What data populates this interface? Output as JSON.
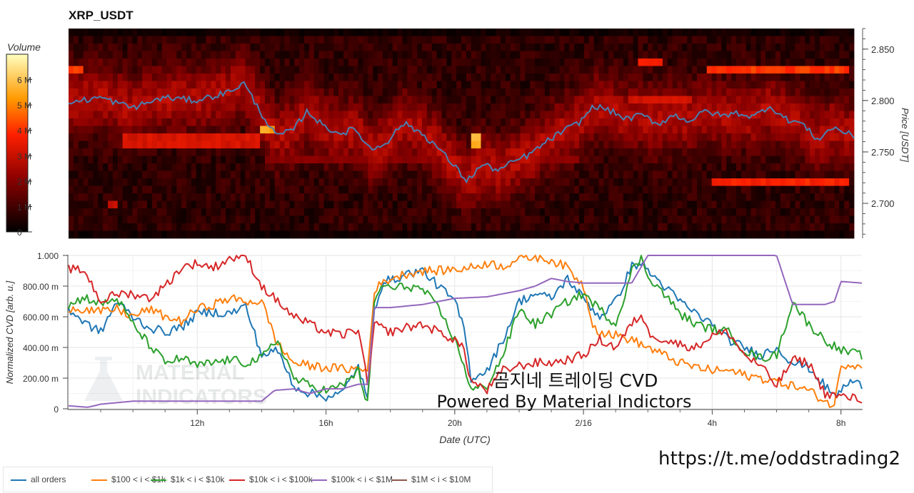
{
  "title": "XRP_USDT",
  "colorbar": {
    "title": "Volume",
    "ticks": [
      "6 M",
      "5 M",
      "4 M",
      "3 M",
      "2 M",
      "1 M",
      "0"
    ],
    "max": 7
  },
  "heatmap": {
    "ylabel": "Price [USDT]",
    "price_range": [
      2.666,
      2.87
    ],
    "price_ticks": [
      "2.850",
      "2.800",
      "2.750",
      "2.700"
    ],
    "price_tick_values": [
      2.85,
      2.8,
      2.75,
      2.7
    ],
    "levels": 28,
    "columns": 160
  },
  "cvd": {
    "ylabel": "Normalized CVD [arb. u.]",
    "y_ticks": [
      "1.000",
      "800.00 m",
      "600.00 m",
      "400.00 m",
      "200.00 m",
      "0"
    ],
    "y_tick_values": [
      1,
      0.8,
      0.6,
      0.4,
      0.2,
      0
    ],
    "xlabel": "Date (UTC)",
    "x_ticks": [
      "12h",
      "16h",
      "20h",
      "2/16",
      "4h",
      "8h"
    ],
    "x_tick_hours": [
      12,
      16,
      20,
      24,
      28,
      32
    ],
    "hour_range": [
      8.0,
      32.65
    ]
  },
  "watermark": {
    "line1": "MATERIAL",
    "line2": "INDICATORS"
  },
  "overlay": {
    "line1": "곰지네 트레이딩 CVD",
    "line2": "Powered By Material Indictors"
  },
  "url": "https://t.me/oddstrading2",
  "chart_data": [
    {
      "type": "heatmap",
      "title": "XRP_USDT",
      "ylabel": "Price [USDT]",
      "colorbar_label": "Volume",
      "price_line": {
        "name": "price",
        "color": "#4a7fb0",
        "hours": [
          8.0,
          9.0,
          10.0,
          11.0,
          12.0,
          13.0,
          13.5,
          14.0,
          14.5,
          15.0,
          15.5,
          16.0,
          16.5,
          17.0,
          17.5,
          18.0,
          18.5,
          19.0,
          19.5,
          20.0,
          20.5,
          21.0,
          21.5,
          22.0,
          22.5,
          23.0,
          23.5,
          24.0,
          24.5,
          25.0,
          25.5,
          26.0,
          26.5,
          27.0,
          27.5,
          28.0,
          28.5,
          29.0,
          29.5,
          30.0,
          30.5,
          31.0,
          31.5,
          32.0,
          32.65
        ],
        "prices": [
          2.798,
          2.803,
          2.793,
          2.803,
          2.8,
          2.808,
          2.817,
          2.79,
          2.766,
          2.77,
          2.79,
          2.775,
          2.768,
          2.772,
          2.752,
          2.76,
          2.778,
          2.77,
          2.757,
          2.74,
          2.722,
          2.738,
          2.732,
          2.741,
          2.748,
          2.76,
          2.77,
          2.778,
          2.795,
          2.79,
          2.782,
          2.786,
          2.777,
          2.786,
          2.78,
          2.79,
          2.785,
          2.788,
          2.784,
          2.795,
          2.782,
          2.778,
          2.762,
          2.774,
          2.765
        ]
      },
      "bands": [
        {
          "price": 2.83,
          "from_hour": 28.0,
          "to_hour": 32.5,
          "volume": 4.2
        },
        {
          "price": 2.84,
          "from_hour": 25.8,
          "to_hour": 26.7,
          "volume": 3.8
        },
        {
          "price": 2.83,
          "from_hour": 8.0,
          "to_hour": 8.5,
          "volume": 4.4
        },
        {
          "price": 2.77,
          "from_hour": 14.0,
          "to_hour": 14.5,
          "volume": 5.6
        },
        {
          "price": 2.76,
          "from_hour": 9.7,
          "to_hour": 14.0,
          "volume": 3.3
        },
        {
          "price": 2.76,
          "from_hour": 20.7,
          "to_hour": 20.9,
          "volume": 5.7
        },
        {
          "price": 2.74,
          "from_hour": 14.2,
          "to_hour": 24.0,
          "volume": 2.1
        },
        {
          "price": 2.72,
          "from_hour": 28.2,
          "to_hour": 32.5,
          "volume": 3.9
        },
        {
          "price": 2.7,
          "from_hour": 9.3,
          "to_hour": 9.6,
          "volume": 3.0
        },
        {
          "price": 2.8,
          "from_hour": 25.5,
          "to_hour": 27.5,
          "volume": 3.2
        }
      ]
    },
    {
      "type": "line",
      "xlabel": "Date (UTC)",
      "ylabel": "Normalized CVD [arb. u.]",
      "ylim": [
        0,
        1
      ],
      "xlim_hours": [
        8.0,
        32.65
      ],
      "series": [
        {
          "name": "all orders",
          "color": "#1f77b4",
          "x": [
            8.0,
            8.5,
            9.0,
            9.5,
            10.0,
            10.5,
            11.0,
            11.5,
            12.0,
            12.5,
            13.0,
            13.5,
            14.0,
            14.5,
            15.0,
            15.5,
            16.0,
            16.5,
            17.0,
            17.3,
            17.5,
            17.8,
            18.0,
            18.5,
            19.0,
            19.5,
            20.0,
            20.3,
            20.5,
            21.0,
            21.5,
            22.0,
            22.5,
            23.0,
            23.5,
            24.0,
            24.5,
            25.0,
            25.5,
            25.8,
            26.0,
            26.5,
            27.0,
            27.5,
            28.0,
            28.5,
            29.0,
            29.5,
            30.0,
            30.5,
            31.0,
            31.5,
            31.8,
            32.0,
            32.3,
            32.65
          ],
          "y": [
            0.65,
            0.56,
            0.5,
            0.7,
            0.6,
            0.53,
            0.5,
            0.53,
            0.62,
            0.63,
            0.62,
            0.67,
            0.35,
            0.38,
            0.15,
            0.1,
            0.08,
            0.1,
            0.28,
            0.05,
            0.65,
            0.85,
            0.83,
            0.88,
            0.9,
            0.8,
            0.7,
            0.52,
            0.2,
            0.25,
            0.45,
            0.7,
            0.75,
            0.72,
            0.85,
            0.72,
            0.6,
            0.7,
            0.93,
            0.95,
            0.9,
            0.8,
            0.7,
            0.62,
            0.55,
            0.45,
            0.4,
            0.35,
            0.4,
            0.3,
            0.27,
            0.15,
            0.08,
            0.12,
            0.18,
            0.15
          ]
        },
        {
          "name": "$100 < i < $1k",
          "color": "#ff7f0e",
          "x": [
            8.0,
            8.5,
            9.0,
            9.5,
            10.0,
            10.5,
            11.0,
            11.5,
            12.0,
            12.5,
            13.0,
            13.5,
            14.0,
            14.5,
            15.0,
            15.5,
            16.0,
            16.5,
            17.0,
            17.3,
            17.5,
            18.0,
            18.5,
            19.0,
            19.5,
            20.0,
            20.5,
            21.0,
            21.5,
            22.0,
            22.5,
            23.0,
            23.5,
            24.0,
            24.3,
            24.5,
            25.0,
            25.5,
            26.0,
            26.5,
            27.0,
            27.5,
            28.0,
            28.5,
            29.0,
            29.5,
            30.0,
            30.5,
            31.0,
            31.5,
            31.8,
            32.0,
            32.65
          ],
          "y": [
            0.66,
            0.65,
            0.63,
            0.65,
            0.6,
            0.65,
            0.6,
            0.57,
            0.65,
            0.68,
            0.72,
            0.7,
            0.7,
            0.42,
            0.3,
            0.28,
            0.27,
            0.26,
            0.26,
            0.25,
            0.78,
            0.85,
            0.88,
            0.9,
            0.9,
            0.91,
            0.92,
            0.95,
            0.93,
            0.98,
            0.99,
            0.97,
            0.92,
            0.8,
            0.55,
            0.5,
            0.48,
            0.45,
            0.4,
            0.35,
            0.3,
            0.27,
            0.25,
            0.25,
            0.22,
            0.2,
            0.18,
            0.15,
            0.12,
            0.05,
            0.02,
            0.29,
            0.29
          ]
        },
        {
          "name": "$1k < i < $10k",
          "color": "#2ca02c",
          "x": [
            8.0,
            8.5,
            9.0,
            9.5,
            10.0,
            10.5,
            11.0,
            11.5,
            12.0,
            12.5,
            13.0,
            13.5,
            14.0,
            14.5,
            15.0,
            15.5,
            16.0,
            16.5,
            17.0,
            17.3,
            17.5,
            17.8,
            18.0,
            18.5,
            19.0,
            19.5,
            20.0,
            20.3,
            20.5,
            21.0,
            21.5,
            22.0,
            22.5,
            23.0,
            23.5,
            24.0,
            24.5,
            25.0,
            25.5,
            25.8,
            26.0,
            26.5,
            27.0,
            27.5,
            28.0,
            28.5,
            29.0,
            29.5,
            30.0,
            30.5,
            31.0,
            31.5,
            32.0,
            32.65
          ],
          "y": [
            0.67,
            0.73,
            0.68,
            0.72,
            0.55,
            0.42,
            0.3,
            0.33,
            0.28,
            0.3,
            0.32,
            0.3,
            0.33,
            0.45,
            0.2,
            0.15,
            0.12,
            0.15,
            0.25,
            0.02,
            0.7,
            0.82,
            0.78,
            0.8,
            0.78,
            0.65,
            0.45,
            0.28,
            0.12,
            0.15,
            0.35,
            0.65,
            0.55,
            0.62,
            0.7,
            0.75,
            0.65,
            0.55,
            0.9,
            0.98,
            0.87,
            0.75,
            0.62,
            0.55,
            0.52,
            0.5,
            0.38,
            0.33,
            0.35,
            0.7,
            0.55,
            0.45,
            0.38,
            0.35
          ]
        },
        {
          "name": "$10k < i < $100k",
          "color": "#d62728",
          "x": [
            8.0,
            8.5,
            9.0,
            9.5,
            10.0,
            10.5,
            11.0,
            11.5,
            12.0,
            12.5,
            13.0,
            13.5,
            14.0,
            14.5,
            15.0,
            15.5,
            16.0,
            16.5,
            17.0,
            17.3,
            17.5,
            18.0,
            18.5,
            19.0,
            19.5,
            20.0,
            20.3,
            20.5,
            21.0,
            21.5,
            22.0,
            22.5,
            23.0,
            23.5,
            24.0,
            24.5,
            25.0,
            25.5,
            25.8,
            26.0,
            26.5,
            27.0,
            27.5,
            28.0,
            28.5,
            29.0,
            29.5,
            30.0,
            30.5,
            31.0,
            31.5,
            32.0,
            32.65
          ],
          "y": [
            0.91,
            0.9,
            0.7,
            0.75,
            0.75,
            0.72,
            0.8,
            0.92,
            0.95,
            0.92,
            0.98,
            1.0,
            0.8,
            0.7,
            0.6,
            0.55,
            0.5,
            0.48,
            0.52,
            0.15,
            0.55,
            0.5,
            0.53,
            0.55,
            0.5,
            0.45,
            0.38,
            0.18,
            0.12,
            0.25,
            0.28,
            0.3,
            0.3,
            0.32,
            0.35,
            0.45,
            0.4,
            0.55,
            0.62,
            0.5,
            0.45,
            0.42,
            0.4,
            0.48,
            0.5,
            0.35,
            0.28,
            0.15,
            0.32,
            0.3,
            0.1,
            0.08,
            0.06
          ]
        },
        {
          "name": "$100k < i < $1M",
          "color": "#9467bd",
          "x": [
            8.0,
            8.6,
            9.0,
            10.0,
            11.0,
            12.0,
            13.0,
            14.0,
            14.4,
            15.0,
            15.5,
            16.0,
            16.5,
            17.0,
            17.3,
            17.5,
            18.0,
            19.0,
            20.0,
            21.0,
            22.0,
            22.5,
            23.0,
            23.5,
            24.0,
            24.5,
            25.0,
            25.5,
            26.0,
            27.0,
            28.0,
            29.0,
            29.5,
            30.0,
            30.5,
            31.0,
            31.5,
            31.8,
            32.0,
            32.65
          ],
          "y": [
            0.02,
            0.01,
            0.03,
            0.05,
            0.05,
            0.05,
            0.05,
            0.05,
            0.12,
            0.13,
            0.1,
            0.13,
            0.13,
            0.16,
            0.16,
            0.66,
            0.66,
            0.68,
            0.72,
            0.73,
            0.77,
            0.8,
            0.85,
            0.83,
            0.82,
            0.82,
            0.82,
            0.82,
            1.0,
            1.0,
            1.0,
            1.0,
            1.0,
            1.0,
            0.68,
            0.68,
            0.68,
            0.7,
            0.83,
            0.82
          ]
        },
        {
          "name": "$1M < i < $10M",
          "color": "#8c564b",
          "x": [],
          "y": []
        }
      ]
    }
  ],
  "legend": [
    {
      "label": "all orders",
      "color": "#1f77b4"
    },
    {
      "label": "$100 < i < $1k",
      "color": "#ff7f0e"
    },
    {
      "label": "$1k < i < $10k",
      "color": "#2ca02c"
    },
    {
      "label": "$10k < i < $100k",
      "color": "#d62728"
    },
    {
      "label": "$100k < i < $1M",
      "color": "#9467bd"
    },
    {
      "label": "$1M < i < $10M",
      "color": "#8c564b"
    }
  ]
}
